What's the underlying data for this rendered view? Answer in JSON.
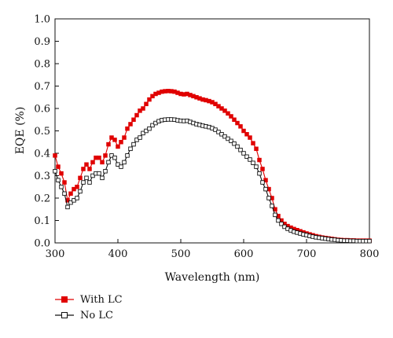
{
  "chart_data": {
    "type": "line",
    "xlabel": "Wavelength (nm)",
    "ylabel": "EQE (%)",
    "xlim": [
      300,
      800
    ],
    "ylim": [
      0.0,
      1.0
    ],
    "xticks": [
      "300",
      "400",
      "500",
      "600",
      "700",
      "800"
    ],
    "yticks": [
      "0.0",
      "0.1",
      "0.2",
      "0.3",
      "0.4",
      "0.5",
      "0.6",
      "0.7",
      "0.8",
      "0.9",
      "1.0"
    ],
    "legend_position": "bottom-left",
    "grid": false,
    "series": [
      {
        "name": "With LC",
        "color": "#e00000",
        "marker": "filled-square",
        "points": [
          [
            300,
            0.39
          ],
          [
            305,
            0.34
          ],
          [
            310,
            0.31
          ],
          [
            315,
            0.27
          ],
          [
            320,
            0.19
          ],
          [
            325,
            0.22
          ],
          [
            330,
            0.24
          ],
          [
            335,
            0.25
          ],
          [
            340,
            0.29
          ],
          [
            345,
            0.33
          ],
          [
            350,
            0.35
          ],
          [
            355,
            0.33
          ],
          [
            360,
            0.36
          ],
          [
            365,
            0.38
          ],
          [
            370,
            0.38
          ],
          [
            375,
            0.36
          ],
          [
            380,
            0.39
          ],
          [
            385,
            0.44
          ],
          [
            390,
            0.47
          ],
          [
            395,
            0.46
          ],
          [
            400,
            0.43
          ],
          [
            405,
            0.45
          ],
          [
            410,
            0.47
          ],
          [
            415,
            0.51
          ],
          [
            420,
            0.53
          ],
          [
            425,
            0.55
          ],
          [
            430,
            0.57
          ],
          [
            435,
            0.59
          ],
          [
            440,
            0.6
          ],
          [
            445,
            0.62
          ],
          [
            450,
            0.64
          ],
          [
            455,
            0.655
          ],
          [
            460,
            0.665
          ],
          [
            465,
            0.67
          ],
          [
            470,
            0.675
          ],
          [
            475,
            0.677
          ],
          [
            480,
            0.678
          ],
          [
            485,
            0.677
          ],
          [
            490,
            0.675
          ],
          [
            495,
            0.67
          ],
          [
            500,
            0.665
          ],
          [
            505,
            0.663
          ],
          [
            510,
            0.665
          ],
          [
            515,
            0.66
          ],
          [
            520,
            0.655
          ],
          [
            525,
            0.65
          ],
          [
            530,
            0.645
          ],
          [
            535,
            0.64
          ],
          [
            540,
            0.637
          ],
          [
            545,
            0.633
          ],
          [
            550,
            0.628
          ],
          [
            555,
            0.62
          ],
          [
            560,
            0.61
          ],
          [
            565,
            0.6
          ],
          [
            570,
            0.59
          ],
          [
            575,
            0.578
          ],
          [
            580,
            0.565
          ],
          [
            585,
            0.55
          ],
          [
            590,
            0.535
          ],
          [
            595,
            0.52
          ],
          [
            600,
            0.5
          ],
          [
            605,
            0.485
          ],
          [
            610,
            0.47
          ],
          [
            615,
            0.445
          ],
          [
            620,
            0.42
          ],
          [
            625,
            0.37
          ],
          [
            630,
            0.33
          ],
          [
            635,
            0.28
          ],
          [
            640,
            0.24
          ],
          [
            645,
            0.2
          ],
          [
            650,
            0.15
          ],
          [
            655,
            0.12
          ],
          [
            660,
            0.1
          ],
          [
            665,
            0.085
          ],
          [
            670,
            0.075
          ],
          [
            675,
            0.068
          ],
          [
            680,
            0.062
          ],
          [
            685,
            0.057
          ],
          [
            690,
            0.052
          ],
          [
            695,
            0.047
          ],
          [
            700,
            0.042
          ],
          [
            705,
            0.038
          ],
          [
            710,
            0.034
          ],
          [
            715,
            0.03
          ],
          [
            720,
            0.027
          ],
          [
            725,
            0.024
          ],
          [
            730,
            0.022
          ],
          [
            735,
            0.02
          ],
          [
            740,
            0.018
          ],
          [
            745,
            0.016
          ],
          [
            750,
            0.014
          ],
          [
            755,
            0.013
          ],
          [
            760,
            0.012
          ],
          [
            765,
            0.012
          ],
          [
            770,
            0.011
          ],
          [
            775,
            0.011
          ],
          [
            780,
            0.01
          ],
          [
            785,
            0.01
          ],
          [
            790,
            0.01
          ],
          [
            795,
            0.01
          ],
          [
            800,
            0.01
          ]
        ]
      },
      {
        "name": "No LC",
        "color": "#111111",
        "marker": "open-square",
        "points": [
          [
            300,
            0.32
          ],
          [
            305,
            0.28
          ],
          [
            310,
            0.25
          ],
          [
            315,
            0.22
          ],
          [
            320,
            0.16
          ],
          [
            325,
            0.18
          ],
          [
            330,
            0.19
          ],
          [
            335,
            0.2
          ],
          [
            340,
            0.23
          ],
          [
            345,
            0.27
          ],
          [
            350,
            0.29
          ],
          [
            355,
            0.27
          ],
          [
            360,
            0.3
          ],
          [
            365,
            0.31
          ],
          [
            370,
            0.31
          ],
          [
            375,
            0.29
          ],
          [
            380,
            0.32
          ],
          [
            385,
            0.36
          ],
          [
            390,
            0.39
          ],
          [
            395,
            0.38
          ],
          [
            400,
            0.35
          ],
          [
            405,
            0.34
          ],
          [
            410,
            0.36
          ],
          [
            415,
            0.39
          ],
          [
            420,
            0.42
          ],
          [
            425,
            0.44
          ],
          [
            430,
            0.46
          ],
          [
            435,
            0.47
          ],
          [
            440,
            0.49
          ],
          [
            445,
            0.5
          ],
          [
            450,
            0.51
          ],
          [
            455,
            0.525
          ],
          [
            460,
            0.535
          ],
          [
            465,
            0.543
          ],
          [
            470,
            0.548
          ],
          [
            475,
            0.55
          ],
          [
            480,
            0.551
          ],
          [
            485,
            0.551
          ],
          [
            490,
            0.55
          ],
          [
            495,
            0.547
          ],
          [
            500,
            0.545
          ],
          [
            505,
            0.544
          ],
          [
            510,
            0.545
          ],
          [
            515,
            0.54
          ],
          [
            520,
            0.535
          ],
          [
            525,
            0.53
          ],
          [
            530,
            0.527
          ],
          [
            535,
            0.523
          ],
          [
            540,
            0.52
          ],
          [
            545,
            0.517
          ],
          [
            550,
            0.512
          ],
          [
            555,
            0.505
          ],
          [
            560,
            0.495
          ],
          [
            565,
            0.485
          ],
          [
            570,
            0.475
          ],
          [
            575,
            0.465
          ],
          [
            580,
            0.455
          ],
          [
            585,
            0.443
          ],
          [
            590,
            0.43
          ],
          [
            595,
            0.415
          ],
          [
            600,
            0.4
          ],
          [
            605,
            0.385
          ],
          [
            610,
            0.372
          ],
          [
            615,
            0.357
          ],
          [
            620,
            0.34
          ],
          [
            625,
            0.31
          ],
          [
            630,
            0.27
          ],
          [
            635,
            0.24
          ],
          [
            640,
            0.2
          ],
          [
            645,
            0.165
          ],
          [
            650,
            0.125
          ],
          [
            655,
            0.1
          ],
          [
            660,
            0.085
          ],
          [
            665,
            0.072
          ],
          [
            670,
            0.063
          ],
          [
            675,
            0.056
          ],
          [
            680,
            0.05
          ],
          [
            685,
            0.046
          ],
          [
            690,
            0.042
          ],
          [
            695,
            0.038
          ],
          [
            700,
            0.035
          ],
          [
            705,
            0.031
          ],
          [
            710,
            0.028
          ],
          [
            715,
            0.025
          ],
          [
            720,
            0.023
          ],
          [
            725,
            0.021
          ],
          [
            730,
            0.019
          ],
          [
            735,
            0.017
          ],
          [
            740,
            0.015
          ],
          [
            745,
            0.014
          ],
          [
            750,
            0.012
          ],
          [
            755,
            0.011
          ],
          [
            760,
            0.01
          ],
          [
            765,
            0.01
          ],
          [
            770,
            0.009
          ],
          [
            775,
            0.009
          ],
          [
            780,
            0.008
          ],
          [
            785,
            0.008
          ],
          [
            790,
            0.008
          ],
          [
            795,
            0.008
          ],
          [
            800,
            0.008
          ]
        ]
      }
    ]
  }
}
